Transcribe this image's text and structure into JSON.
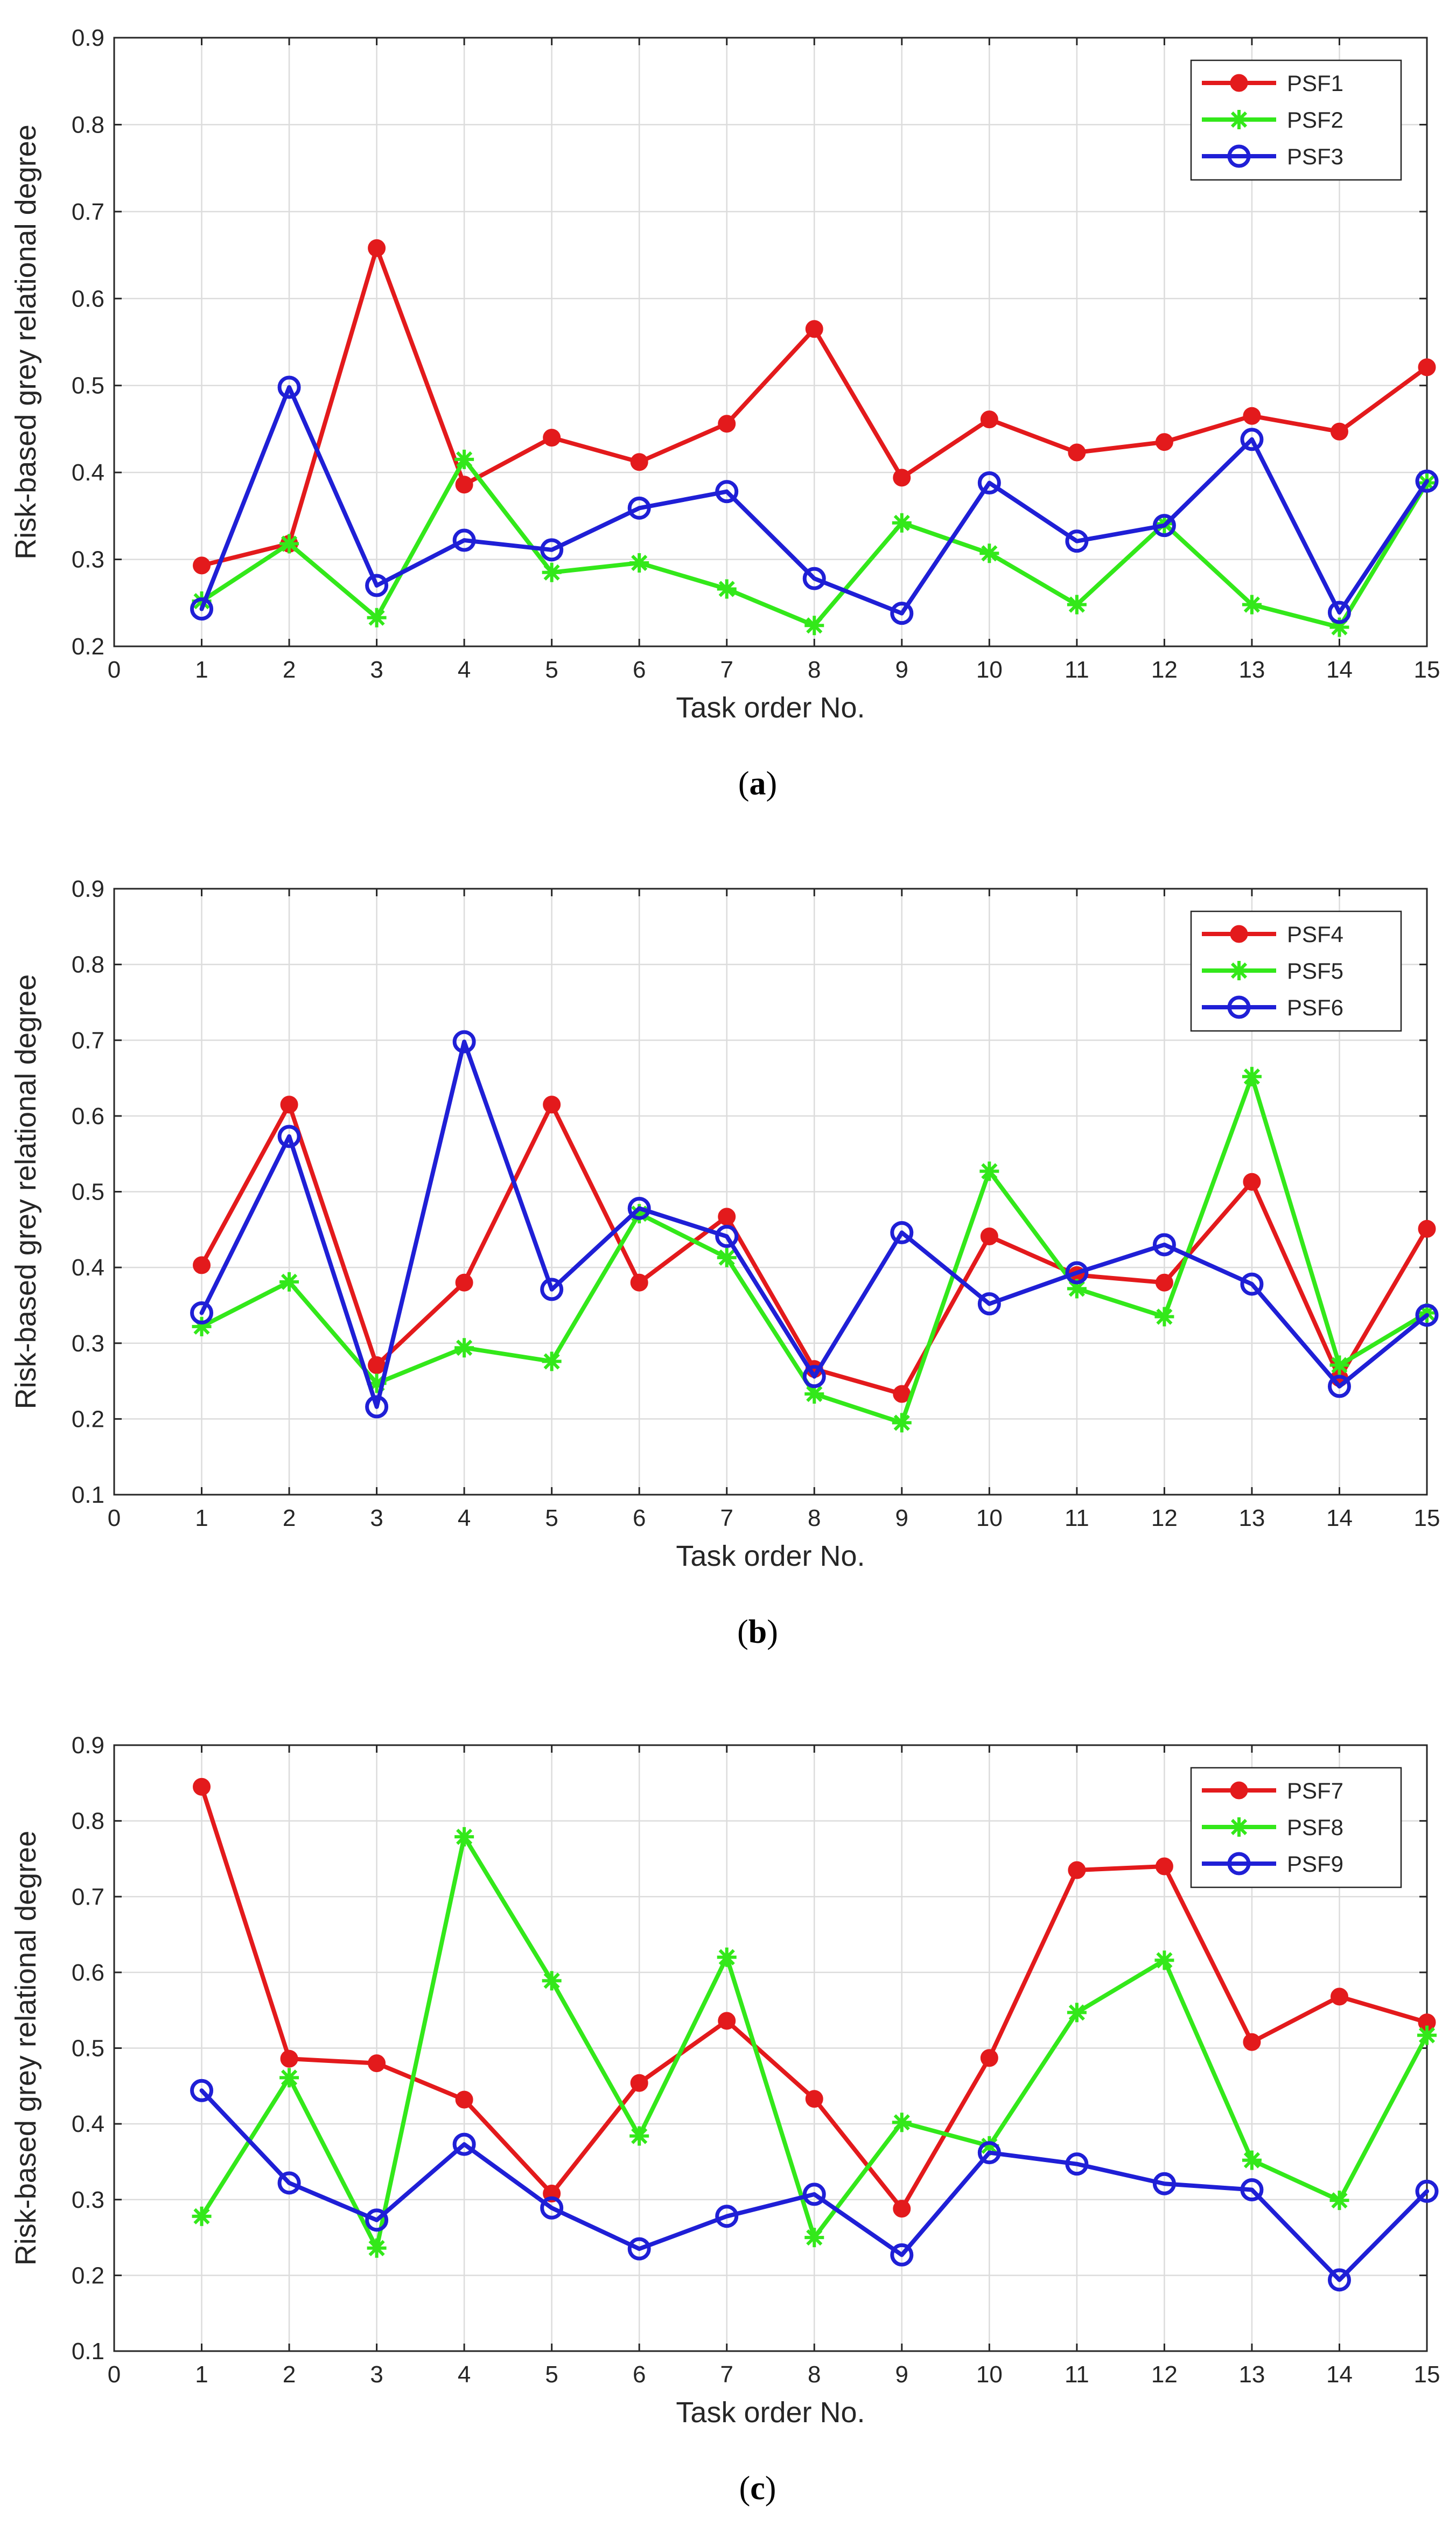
{
  "chart_data": [
    {
      "type": "line",
      "caption": "(a)",
      "caption_bold": "a",
      "xlabel": "Task order No.",
      "ylabel": "Risk-based grey relational degree",
      "xlim": [
        0,
        15
      ],
      "ylim": [
        0.2,
        0.9
      ],
      "xticks": [
        "0",
        "1",
        "2",
        "3",
        "4",
        "5",
        "6",
        "7",
        "8",
        "9",
        "10",
        "11",
        "12",
        "13",
        "14",
        "15"
      ],
      "yticks": [
        "0.2",
        "0.3",
        "0.4",
        "0.5",
        "0.6",
        "0.7",
        "0.8",
        "0.9"
      ],
      "grid": true,
      "legend_position": "top-right",
      "x": [
        1,
        2,
        3,
        4,
        5,
        6,
        7,
        8,
        9,
        10,
        11,
        12,
        13,
        14,
        15
      ],
      "series": [
        {
          "name": "PSF1",
          "color": "#e31a1c",
          "marker": "dot",
          "values": [
            0.293,
            0.318,
            0.658,
            0.386,
            0.44,
            0.412,
            0.456,
            0.565,
            0.394,
            0.461,
            0.423,
            0.435,
            0.465,
            0.447,
            0.521
          ]
        },
        {
          "name": "PSF2",
          "color": "#33e81a",
          "marker": "star",
          "values": [
            0.252,
            0.318,
            0.233,
            0.415,
            0.285,
            0.296,
            0.266,
            0.224,
            0.342,
            0.307,
            0.248,
            0.341,
            0.248,
            0.222,
            0.388
          ]
        },
        {
          "name": "PSF3",
          "color": "#1f1fd6",
          "marker": "circle",
          "values": [
            0.243,
            0.498,
            0.27,
            0.322,
            0.311,
            0.359,
            0.378,
            0.278,
            0.238,
            0.388,
            0.321,
            0.339,
            0.438,
            0.239,
            0.39
          ]
        }
      ]
    },
    {
      "type": "line",
      "caption": "(b)",
      "caption_bold": "b",
      "xlabel": "Task order No.",
      "ylabel": "Risk-based grey relational degree",
      "xlim": [
        0,
        15
      ],
      "ylim": [
        0.1,
        0.9
      ],
      "xticks": [
        "0",
        "1",
        "2",
        "3",
        "4",
        "5",
        "6",
        "7",
        "8",
        "9",
        "10",
        "11",
        "12",
        "13",
        "14",
        "15"
      ],
      "yticks": [
        "0.1",
        "0.2",
        "0.3",
        "0.4",
        "0.5",
        "0.6",
        "0.7",
        "0.8",
        "0.9"
      ],
      "grid": true,
      "legend_position": "top-right",
      "x": [
        1,
        2,
        3,
        4,
        5,
        6,
        7,
        8,
        9,
        10,
        11,
        12,
        13,
        14,
        15
      ],
      "series": [
        {
          "name": "PSF4",
          "color": "#e31a1c",
          "marker": "dot",
          "values": [
            0.403,
            0.615,
            0.271,
            0.38,
            0.615,
            0.38,
            0.467,
            0.266,
            0.233,
            0.441,
            0.39,
            0.38,
            0.513,
            0.254,
            0.451
          ]
        },
        {
          "name": "PSF5",
          "color": "#33e81a",
          "marker": "star",
          "values": [
            0.322,
            0.381,
            0.247,
            0.294,
            0.276,
            0.471,
            0.413,
            0.233,
            0.195,
            0.527,
            0.372,
            0.335,
            0.652,
            0.271,
            0.34
          ]
        },
        {
          "name": "PSF6",
          "color": "#1f1fd6",
          "marker": "circle",
          "values": [
            0.34,
            0.573,
            0.216,
            0.698,
            0.371,
            0.478,
            0.441,
            0.256,
            0.446,
            0.352,
            0.393,
            0.43,
            0.378,
            0.243,
            0.337
          ]
        }
      ]
    },
    {
      "type": "line",
      "caption": "(c)",
      "caption_bold": "c",
      "xlabel": "Task order No.",
      "ylabel": "Risk-based grey relational degree",
      "xlim": [
        0,
        15
      ],
      "ylim": [
        0.1,
        0.9
      ],
      "xticks": [
        "0",
        "1",
        "2",
        "3",
        "4",
        "5",
        "6",
        "7",
        "8",
        "9",
        "10",
        "11",
        "12",
        "13",
        "14",
        "15"
      ],
      "yticks": [
        "0.1",
        "0.2",
        "0.3",
        "0.4",
        "0.5",
        "0.6",
        "0.7",
        "0.8",
        "0.9"
      ],
      "grid": true,
      "legend_position": "top-right",
      "x": [
        1,
        2,
        3,
        4,
        5,
        6,
        7,
        8,
        9,
        10,
        11,
        12,
        13,
        14,
        15
      ],
      "series": [
        {
          "name": "PSF7",
          "color": "#e31a1c",
          "marker": "dot",
          "values": [
            0.845,
            0.486,
            0.48,
            0.432,
            0.308,
            0.454,
            0.536,
            0.433,
            0.288,
            0.487,
            0.735,
            0.74,
            0.508,
            0.568,
            0.534
          ]
        },
        {
          "name": "PSF8",
          "color": "#33e81a",
          "marker": "star",
          "values": [
            0.278,
            0.461,
            0.236,
            0.779,
            0.589,
            0.384,
            0.62,
            0.25,
            0.402,
            0.371,
            0.547,
            0.616,
            0.352,
            0.299,
            0.517
          ]
        },
        {
          "name": "PSF9",
          "color": "#1f1fd6",
          "marker": "circle",
          "values": [
            0.444,
            0.322,
            0.273,
            0.373,
            0.289,
            0.235,
            0.278,
            0.307,
            0.227,
            0.362,
            0.347,
            0.321,
            0.313,
            0.194,
            0.311
          ]
        }
      ]
    }
  ]
}
